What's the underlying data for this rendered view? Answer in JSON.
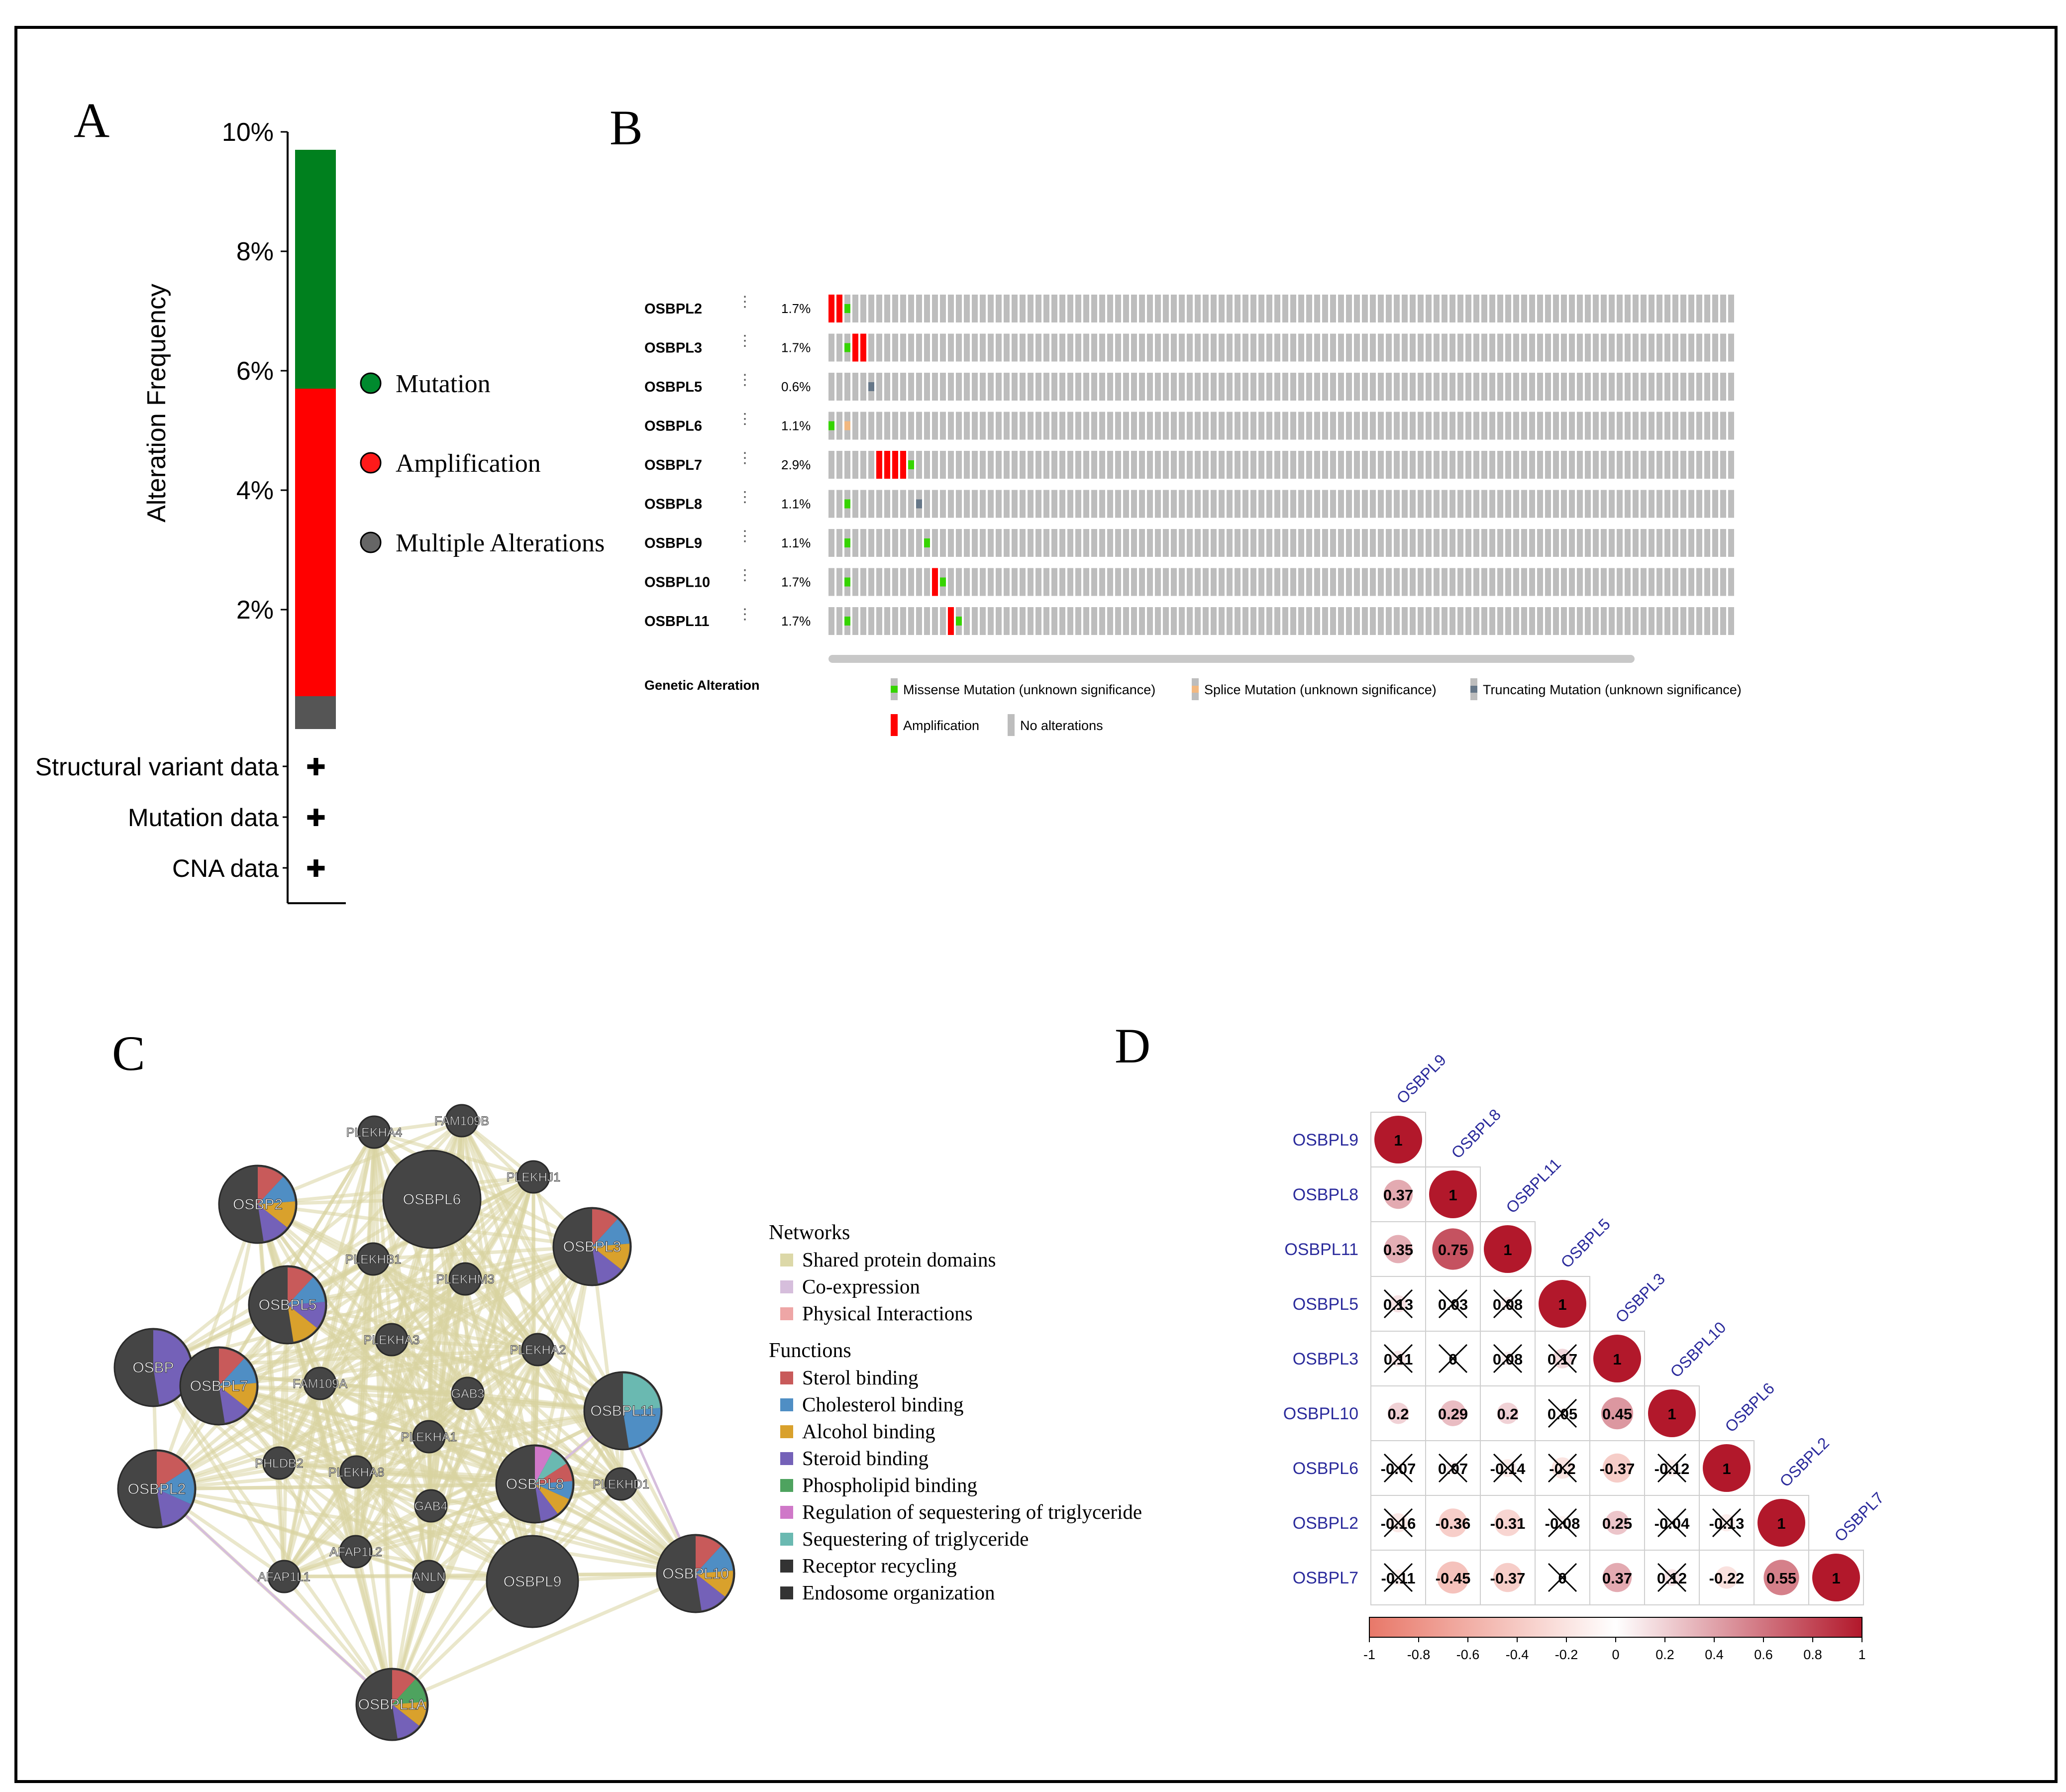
{
  "panels": {
    "a": "A",
    "b": "B",
    "c": "C",
    "d": "D"
  },
  "panel_a": {
    "chart_data": {
      "type": "bar",
      "categories": [
        ""
      ],
      "series": [
        {
          "name": "Multiple Alterations",
          "values": [
            0.55
          ]
        },
        {
          "name": "Amplification",
          "values": [
            5.15
          ]
        },
        {
          "name": "Mutation",
          "values": [
            4.0
          ]
        }
      ],
      "ylabel": "Alteration Frequency",
      "ylim": [
        0,
        10
      ],
      "yticks": [
        "2%",
        "4%",
        "6%",
        "8%",
        "10%"
      ]
    },
    "legend": [
      {
        "label": "Mutation",
        "color": "#008a2e"
      },
      {
        "label": "Amplification",
        "color": "#ff1a1a"
      },
      {
        "label": "Multiple Alterations",
        "color": "#666666"
      }
    ],
    "data_rows": [
      "Structural variant data",
      "Mutation data",
      "CNA data"
    ],
    "plus": "✚"
  },
  "panel_b": {
    "genes": [
      {
        "name": "OSBPL2",
        "pct": "1.7%"
      },
      {
        "name": "OSBPL3",
        "pct": "1.7%"
      },
      {
        "name": "OSBPL5",
        "pct": "0.6%"
      },
      {
        "name": "OSBPL6",
        "pct": "1.1%"
      },
      {
        "name": "OSBPL7",
        "pct": "2.9%"
      },
      {
        "name": "OSBPL8",
        "pct": "1.1%"
      },
      {
        "name": "OSBPL9",
        "pct": "1.1%"
      },
      {
        "name": "OSBPL10",
        "pct": "1.7%"
      },
      {
        "name": "OSBPL11",
        "pct": "1.7%"
      }
    ],
    "legend_title": "Genetic Alteration",
    "legend": [
      {
        "label": "Missense Mutation (unknown significance)",
        "color": "#36d400"
      },
      {
        "label": "Splice Mutation (unknown significance)",
        "color": "#f2b880"
      },
      {
        "label": "Truncating Mutation (unknown significance)",
        "color": "#667788"
      },
      {
        "label": "Amplification",
        "color": "#ff0000"
      },
      {
        "label": "No alterations",
        "color": "#bdbdbd"
      }
    ]
  },
  "panel_c": {
    "nodes": [
      "OSBP2",
      "OSBPL6",
      "OSBPL3",
      "OSBPL5",
      "OSBP",
      "OSBPL7",
      "OSBPL11",
      "OSBPL2",
      "OSBPL8",
      "OSBPL9",
      "OSBPL10",
      "OSBPL1A",
      "PLEKHA4",
      "FAM109B",
      "PLEKHJ1",
      "PLEKHB1",
      "PLEKHM3",
      "PLEKHA3",
      "PLEKHA2",
      "FAM109A",
      "GAB3",
      "PLEKHA1",
      "PHLDB2",
      "PLEKHA8",
      "PLEKHD1",
      "GAB4",
      "AFAP1L2",
      "AFAP1L1",
      "ANLN"
    ],
    "networks_title": "Networks",
    "networks": [
      {
        "label": "Shared protein domains",
        "color": "#dcd8a8"
      },
      {
        "label": "Co-expression",
        "color": "#d6bedc"
      },
      {
        "label": "Physical Interactions",
        "color": "#eea6a6"
      }
    ],
    "functions_title": "Functions",
    "functions": [
      {
        "label": "Sterol binding",
        "color": "#c85a5a"
      },
      {
        "label": "Cholesterol binding",
        "color": "#4f8ec4"
      },
      {
        "label": "Alcohol binding",
        "color": "#d9a12c"
      },
      {
        "label": "Steroid binding",
        "color": "#7461b8"
      },
      {
        "label": "Phospholipid binding",
        "color": "#4ea35f"
      },
      {
        "label": "Regulation of   sequestering of triglyceride",
        "color": "#cf78c8"
      },
      {
        "label": "Sequestering of triglyceride",
        "color": "#6ab9b1"
      },
      {
        "label": "Receptor recycling",
        "color": "#333333"
      },
      {
        "label": "Endosome organization",
        "color": "#333333"
      }
    ]
  },
  "panel_d": {
    "genes": [
      "OSBPL9",
      "OSBPL8",
      "OSBPL11",
      "OSBPL5",
      "OSBPL3",
      "OSBPL10",
      "OSBPL6",
      "OSBPL2",
      "OSBPL7"
    ],
    "matrix_labels": [
      [
        "1"
      ],
      [
        "0.37",
        "1"
      ],
      [
        "0.35",
        "0.75",
        "1"
      ],
      [
        "0.13",
        "0.03",
        "0.08",
        "1"
      ],
      [
        "0.11",
        "0",
        "0.08",
        "0.17",
        "1"
      ],
      [
        "0.2",
        "0.29",
        "0.2",
        "0.05",
        "0.45",
        "1"
      ],
      [
        "-0.07",
        "0.07",
        "-0.14",
        "-0.2",
        "-0.37",
        "-0.12",
        "1"
      ],
      [
        "-0.16",
        "-0.36",
        "-0.31",
        "-0.08",
        "0.25",
        "-0.04",
        "-0.13",
        "1"
      ],
      [
        "-0.11",
        "-0.45",
        "-0.37",
        "0",
        "0.37",
        "0.12",
        "-0.22",
        "0.55",
        "1"
      ]
    ],
    "matrix": [
      [
        1
      ],
      [
        0.37,
        1
      ],
      [
        0.35,
        0.75,
        1
      ],
      [
        0.13,
        0.03,
        0.08,
        1
      ],
      [
        0.11,
        0,
        0.08,
        0.17,
        1
      ],
      [
        0.2,
        0.29,
        0.2,
        0.05,
        0.45,
        1
      ],
      [
        -0.07,
        0.07,
        -0.14,
        -0.2,
        -0.37,
        -0.12,
        1
      ],
      [
        -0.16,
        -0.36,
        -0.31,
        -0.08,
        0.25,
        -0.04,
        -0.13,
        1
      ],
      [
        -0.11,
        -0.45,
        -0.37,
        0,
        0.37,
        0.12,
        -0.22,
        0.55,
        1
      ]
    ],
    "crossed": [
      [],
      [],
      [],
      [
        0,
        1,
        2
      ],
      [
        0,
        1,
        2,
        3
      ],
      [
        3
      ],
      [
        0,
        1,
        2,
        3,
        5
      ],
      [
        0,
        3,
        5,
        6
      ],
      [
        0,
        3,
        5
      ]
    ],
    "colorbar_ticks": [
      "-1",
      "-0.8",
      "-0.6",
      "-0.4",
      "-0.2",
      "0",
      "0.2",
      "0.4",
      "0.6",
      "0.8",
      "1"
    ]
  }
}
